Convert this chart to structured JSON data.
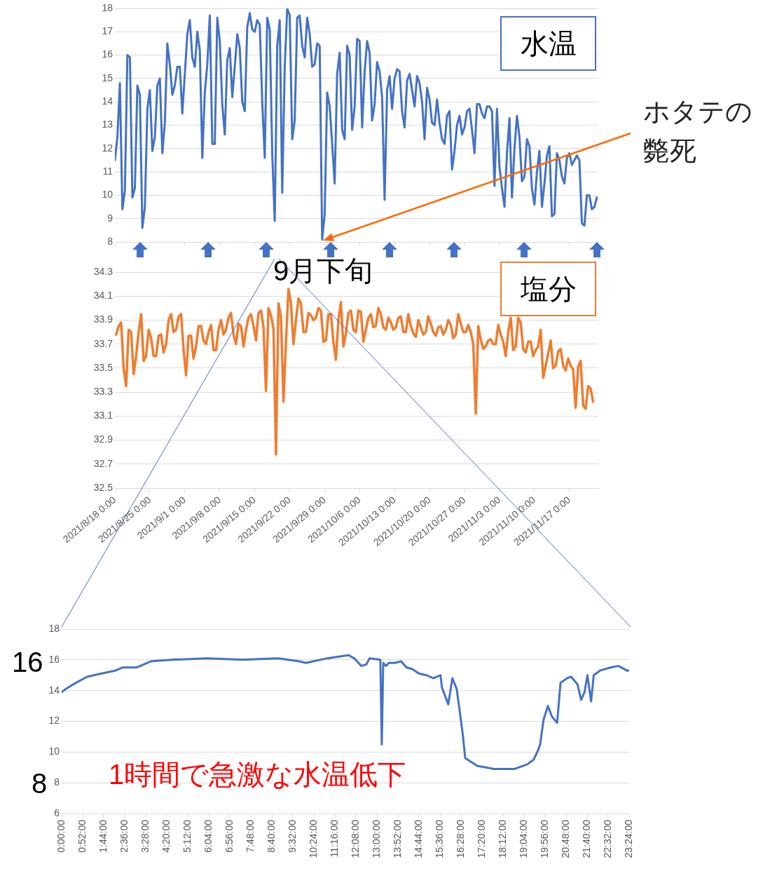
{
  "chart_data": [
    {
      "type": "line",
      "title": "水温",
      "xlim": [
        "2021-08-18T00:00",
        "2021-11-22T19:00"
      ],
      "xticks": [
        {
          "value": "2021-08-18T00:00",
          "label": null
        },
        {
          "value": "2021-08-25T00:00",
          "label": null
        },
        {
          "value": "2021-09-01T00:00",
          "label": null
        },
        {
          "value": "2021-09-08T00:00",
          "label": null
        },
        {
          "value": "2021-09-15T00:00",
          "label": null
        },
        {
          "value": "2021-09-22T00:00",
          "label": null
        },
        {
          "value": "2021-09-29T00:00",
          "label": null
        },
        {
          "value": "2021-10-06T00:00",
          "label": null
        },
        {
          "value": "2021-10-13T00:00",
          "label": null
        },
        {
          "value": "2021-10-20T00:00",
          "label": null
        },
        {
          "value": "2021-10-27T00:00",
          "label": null
        },
        {
          "value": "2021-11-03T00:00",
          "label": null
        },
        {
          "value": "2021-11-10T00:00",
          "label": null
        },
        {
          "value": "2021-11-17T00:00",
          "label": null
        }
      ],
      "ylim": [
        8,
        18
      ],
      "yticks": [
        8,
        9,
        10,
        11,
        12,
        13,
        14,
        15,
        16,
        17,
        18
      ],
      "grid": "y",
      "tick_labels": "y",
      "annotations": [
        "ホタテの斃死"
      ],
      "x": [
        "2021-08-18T00:00",
        "2021-08-18T12:00",
        "2021-08-19T00:00",
        "2021-08-19T12:00",
        "2021-08-20T00:00",
        "2021-08-20T12:00",
        "2021-08-21T00:00",
        "2021-08-21T12:00",
        "2021-08-22T00:00",
        "2021-08-22T12:00",
        "2021-08-23T00:00",
        "2021-08-23T12:00",
        "2021-08-24T00:00",
        "2021-08-24T12:00",
        "2021-08-25T00:00",
        "2021-08-25T12:00",
        "2021-08-26T00:00",
        "2021-08-26T12:00",
        "2021-08-27T00:00",
        "2021-08-27T12:00",
        "2021-08-28T00:00",
        "2021-08-28T12:00",
        "2021-08-29T00:00",
        "2021-08-29T12:00",
        "2021-08-30T00:00",
        "2021-08-30T12:00",
        "2021-08-31T00:00",
        "2021-08-31T12:00",
        "2021-09-01T00:00",
        "2021-09-01T12:00",
        "2021-09-02T00:00",
        "2021-09-02T12:00",
        "2021-09-03T00:00",
        "2021-09-03T12:00",
        "2021-09-04T00:00",
        "2021-09-04T12:00",
        "2021-09-05T00:00",
        "2021-09-05T12:00",
        "2021-09-06T00:00",
        "2021-09-06T12:00",
        "2021-09-07T00:00",
        "2021-09-07T12:00",
        "2021-09-08T00:00",
        "2021-09-08T12:00",
        "2021-09-09T00:00",
        "2021-09-09T12:00",
        "2021-09-10T00:00",
        "2021-09-10T12:00",
        "2021-09-11T00:00",
        "2021-09-11T12:00",
        "2021-09-12T00:00",
        "2021-09-12T12:00",
        "2021-09-13T00:00",
        "2021-09-13T12:00",
        "2021-09-14T00:00",
        "2021-09-14T12:00",
        "2021-09-15T00:00",
        "2021-09-15T12:00",
        "2021-09-16T00:00",
        "2021-09-16T12:00",
        "2021-09-17T00:00",
        "2021-09-17T12:00",
        "2021-09-18T00:00",
        "2021-09-18T12:00",
        "2021-09-19T00:00",
        "2021-09-19T12:00",
        "2021-09-20T00:00",
        "2021-09-20T12:00",
        "2021-09-21T00:00",
        "2021-09-21T12:00",
        "2021-09-22T00:00",
        "2021-09-22T12:00",
        "2021-09-23T00:00",
        "2021-09-23T12:00",
        "2021-09-24T00:00",
        "2021-09-24T12:00",
        "2021-09-25T00:00",
        "2021-09-25T12:00",
        "2021-09-26T00:00",
        "2021-09-26T12:00",
        "2021-09-27T00:00",
        "2021-09-27T12:00",
        "2021-09-28T00:00",
        "2021-09-28T12:00",
        "2021-09-29T00:00",
        "2021-09-29T12:00",
        "2021-09-30T00:00",
        "2021-09-30T12:00",
        "2021-10-01T00:00",
        "2021-10-01T12:00",
        "2021-10-02T00:00",
        "2021-10-02T12:00",
        "2021-10-03T00:00",
        "2021-10-03T12:00",
        "2021-10-04T00:00",
        "2021-10-04T12:00",
        "2021-10-05T00:00",
        "2021-10-05T12:00",
        "2021-10-06T00:00",
        "2021-10-06T12:00",
        "2021-10-07T00:00",
        "2021-10-07T12:00",
        "2021-10-08T00:00",
        "2021-10-08T12:00",
        "2021-10-09T00:00",
        "2021-10-09T12:00",
        "2021-10-10T00:00",
        "2021-10-10T12:00",
        "2021-10-11T00:00",
        "2021-10-11T12:00",
        "2021-10-12T00:00",
        "2021-10-12T12:00",
        "2021-10-13T00:00",
        "2021-10-13T12:00",
        "2021-10-14T00:00",
        "2021-10-14T12:00",
        "2021-10-15T00:00",
        "2021-10-15T12:00",
        "2021-10-16T00:00",
        "2021-10-16T12:00",
        "2021-10-17T00:00",
        "2021-10-17T12:00",
        "2021-10-18T00:00",
        "2021-10-18T12:00",
        "2021-10-19T00:00",
        "2021-10-19T12:00",
        "2021-10-20T00:00",
        "2021-10-20T12:00",
        "2021-10-21T00:00",
        "2021-10-21T12:00",
        "2021-10-22T00:00",
        "2021-10-22T12:00",
        "2021-10-23T00:00",
        "2021-10-23T12:00",
        "2021-10-24T00:00",
        "2021-10-24T12:00",
        "2021-10-25T00:00",
        "2021-10-25T12:00",
        "2021-10-26T00:00",
        "2021-10-26T12:00",
        "2021-10-27T00:00",
        "2021-10-27T12:00",
        "2021-10-28T00:00",
        "2021-10-28T12:00",
        "2021-10-29T00:00",
        "2021-10-29T12:00",
        "2021-10-30T00:00",
        "2021-10-30T12:00",
        "2021-10-31T00:00",
        "2021-10-31T12:00",
        "2021-11-01T00:00",
        "2021-11-01T12:00",
        "2021-11-02T00:00",
        "2021-11-02T12:00",
        "2021-11-03T00:00",
        "2021-11-03T12:00",
        "2021-11-04T00:00",
        "2021-11-04T12:00",
        "2021-11-05T00:00",
        "2021-11-05T12:00",
        "2021-11-06T00:00",
        "2021-11-06T12:00",
        "2021-11-07T00:00",
        "2021-11-07T12:00",
        "2021-11-08T00:00",
        "2021-11-08T12:00",
        "2021-11-09T00:00",
        "2021-11-09T12:00",
        "2021-11-10T00:00",
        "2021-11-10T12:00",
        "2021-11-11T00:00",
        "2021-11-11T12:00",
        "2021-11-12T00:00",
        "2021-11-12T12:00",
        "2021-11-13T00:00",
        "2021-11-13T12:00",
        "2021-11-14T00:00",
        "2021-11-14T12:00",
        "2021-11-15T00:00",
        "2021-11-15T12:00",
        "2021-11-16T00:00",
        "2021-11-16T12:00",
        "2021-11-17T00:00",
        "2021-11-17T12:00",
        "2021-11-18T00:00",
        "2021-11-18T12:00",
        "2021-11-19T00:00",
        "2021-11-19T12:00",
        "2021-11-20T00:00",
        "2021-11-20T12:00",
        "2021-11-21T00:00",
        "2021-11-21T12:00",
        "2021-11-22T00:00",
        "2021-11-22T12:00"
      ],
      "series": [
        {
          "color": "#4472c4",
          "values": [
            11.5,
            12.5,
            14.8,
            9.4,
            10.2,
            16.0,
            15.9,
            9.9,
            10.3,
            14.7,
            14.3,
            8.6,
            9.5,
            13.7,
            14.5,
            11.9,
            12.5,
            14.7,
            15.0,
            11.8,
            13.1,
            16.5,
            15.6,
            14.3,
            14.7,
            15.5,
            15.5,
            13.5,
            15.2,
            16.9,
            17.5,
            15.9,
            15.5,
            17.0,
            16.2,
            11.6,
            14.4,
            15.6,
            17.7,
            12.2,
            12.2,
            17.6,
            16.6,
            13.9,
            12.6,
            15.8,
            16.3,
            14.2,
            15.5,
            16.9,
            16.3,
            14.0,
            13.6,
            17.2,
            17.8,
            17.1,
            17.0,
            17.5,
            17.3,
            14.0,
            11.6,
            17.6,
            17.1,
            11.8,
            8.9,
            16.4,
            17.5,
            10.1,
            15.5,
            18.0,
            17.7,
            12.4,
            13.2,
            17.6,
            17.7,
            16.4,
            15.9,
            17.6,
            16.9,
            15.5,
            15.6,
            16.5,
            16.4,
            8.1,
            9.2,
            14.4,
            13.8,
            12.2,
            10.5,
            15.2,
            16.1,
            12.8,
            12.4,
            16.4,
            16.0,
            12.8,
            13.8,
            16.7,
            16.6,
            12.9,
            15.3,
            16.6,
            16.1,
            13.2,
            13.9,
            15.7,
            15.3,
            14.2,
            9.8,
            14.5,
            15.1,
            13.7,
            15.0,
            15.4,
            15.3,
            13.6,
            12.9,
            14.9,
            15.2,
            14.5,
            13.8,
            15.1,
            14.8,
            14.0,
            12.4,
            14.6,
            14.1,
            13.1,
            13.0,
            14.1,
            13.1,
            12.4,
            12.2,
            13.4,
            13.6,
            11.1,
            11.9,
            13.0,
            13.4,
            12.6,
            12.9,
            13.6,
            13.7,
            12.8,
            11.8,
            13.9,
            13.9,
            13.5,
            13.3,
            13.8,
            13.8,
            13.6,
            10.4,
            13.7,
            11.2,
            10.3,
            9.5,
            11.8,
            13.3,
            9.9,
            12.0,
            13.4,
            12.5,
            10.6,
            10.8,
            12.4,
            12.1,
            10.3,
            9.6,
            11.0,
            11.9,
            9.5,
            10.5,
            11.7,
            12.1,
            9.1,
            9.2,
            11.8,
            11.5,
            10.8,
            10.5,
            11.6,
            11.8,
            11.3,
            11.5,
            11.7,
            11.5,
            8.8,
            8.7,
            10.0,
            10.0,
            9.4,
            9.5,
            9.9
          ]
        }
      ]
    },
    {
      "type": "line",
      "title": "塩分",
      "xlim": [
        "2021-08-18T00:00",
        "2021-11-22T19:00"
      ],
      "xticks": [
        {
          "value": "2021-08-18T00:00",
          "label": "2021/8/18 0:00"
        },
        {
          "value": "2021-08-25T00:00",
          "label": "2021/8/25 0:00"
        },
        {
          "value": "2021-09-01T00:00",
          "label": "2021/9/1 0:00"
        },
        {
          "value": "2021-09-08T00:00",
          "label": "2021/9/8 0:00"
        },
        {
          "value": "2021-09-15T00:00",
          "label": "2021/9/15 0:00"
        },
        {
          "value": "2021-09-22T00:00",
          "label": "2021/9/22 0:00"
        },
        {
          "value": "2021-09-29T00:00",
          "label": "2021/9/29 0:00"
        },
        {
          "value": "2021-10-06T00:00",
          "label": "2021/10/6 0:00"
        },
        {
          "value": "2021-10-13T00:00",
          "label": "2021/10/13 0:00"
        },
        {
          "value": "2021-10-20T00:00",
          "label": "2021/10/20 0:00"
        },
        {
          "value": "2021-10-27T00:00",
          "label": "2021/10/27 0:00"
        },
        {
          "value": "2021-11-03T00:00",
          "label": "2021/11/3 0:00"
        },
        {
          "value": "2021-11-10T00:00",
          "label": "2021/11/10 0:00"
        },
        {
          "value": "2021-11-17T00:00",
          "label": "2021/11/17 0:00"
        }
      ],
      "ylim": [
        32.5,
        34.3
      ],
      "yticks": [
        32.5,
        32.7,
        32.9,
        33.1,
        33.3,
        33.5,
        33.7,
        33.9,
        34.1,
        34.3
      ],
      "grid": "y",
      "annotations": [
        "9月下旬"
      ],
      "x": [
        "2021-08-18T06:00",
        "2021-08-18T18:00",
        "2021-08-19T06:00",
        "2021-08-19T18:00",
        "2021-08-20T06:00",
        "2021-08-20T18:00",
        "2021-08-21T06:00",
        "2021-08-21T18:00",
        "2021-08-22T06:00",
        "2021-08-22T18:00",
        "2021-08-23T06:00",
        "2021-08-23T18:00",
        "2021-08-24T06:00",
        "2021-08-24T18:00",
        "2021-08-25T06:00",
        "2021-08-25T18:00",
        "2021-08-26T06:00",
        "2021-08-26T18:00",
        "2021-08-27T06:00",
        "2021-08-27T18:00",
        "2021-08-28T06:00",
        "2021-08-28T18:00",
        "2021-08-29T06:00",
        "2021-08-29T18:00",
        "2021-08-30T06:00",
        "2021-08-30T18:00",
        "2021-08-31T06:00",
        "2021-08-31T18:00",
        "2021-09-01T06:00",
        "2021-09-01T18:00",
        "2021-09-02T06:00",
        "2021-09-02T18:00",
        "2021-09-03T06:00",
        "2021-09-03T18:00",
        "2021-09-04T06:00",
        "2021-09-04T18:00",
        "2021-09-05T06:00",
        "2021-09-05T18:00",
        "2021-09-06T06:00",
        "2021-09-06T18:00",
        "2021-09-07T06:00",
        "2021-09-07T18:00",
        "2021-09-08T06:00",
        "2021-09-08T18:00",
        "2021-09-09T06:00",
        "2021-09-09T18:00",
        "2021-09-10T06:00",
        "2021-09-10T18:00",
        "2021-09-11T06:00",
        "2021-09-11T18:00",
        "2021-09-12T06:00",
        "2021-09-12T18:00",
        "2021-09-13T06:00",
        "2021-09-13T18:00",
        "2021-09-14T06:00",
        "2021-09-14T18:00",
        "2021-09-15T06:00",
        "2021-09-15T18:00",
        "2021-09-16T06:00",
        "2021-09-16T18:00",
        "2021-09-17T06:00",
        "2021-09-17T18:00",
        "2021-09-18T06:00",
        "2021-09-18T18:00",
        "2021-09-19T06:00",
        "2021-09-19T18:00",
        "2021-09-20T06:00",
        "2021-09-20T18:00",
        "2021-09-21T06:00",
        "2021-09-21T18:00",
        "2021-09-22T06:00",
        "2021-09-22T18:00",
        "2021-09-23T06:00",
        "2021-09-23T18:00",
        "2021-09-24T06:00",
        "2021-09-24T18:00",
        "2021-09-25T06:00",
        "2021-09-25T18:00",
        "2021-09-26T06:00",
        "2021-09-26T18:00",
        "2021-09-27T06:00",
        "2021-09-27T18:00",
        "2021-09-28T06:00",
        "2021-09-28T18:00",
        "2021-09-29T06:00",
        "2021-09-29T18:00",
        "2021-09-30T06:00",
        "2021-09-30T18:00",
        "2021-10-01T06:00",
        "2021-10-01T18:00",
        "2021-10-02T06:00",
        "2021-10-02T18:00",
        "2021-10-03T06:00",
        "2021-10-03T18:00",
        "2021-10-04T06:00",
        "2021-10-04T18:00",
        "2021-10-05T06:00",
        "2021-10-05T18:00",
        "2021-10-06T06:00",
        "2021-10-06T18:00",
        "2021-10-07T06:00",
        "2021-10-07T18:00",
        "2021-10-08T06:00",
        "2021-10-08T18:00",
        "2021-10-09T06:00",
        "2021-10-09T18:00",
        "2021-10-10T06:00",
        "2021-10-10T18:00",
        "2021-10-11T06:00",
        "2021-10-11T18:00",
        "2021-10-12T06:00",
        "2021-10-12T18:00",
        "2021-10-13T06:00",
        "2021-10-13T18:00",
        "2021-10-14T06:00",
        "2021-10-14T18:00",
        "2021-10-15T06:00",
        "2021-10-15T18:00",
        "2021-10-16T06:00",
        "2021-10-16T18:00",
        "2021-10-17T06:00",
        "2021-10-17T18:00",
        "2021-10-18T06:00",
        "2021-10-18T18:00",
        "2021-10-19T06:00",
        "2021-10-19T18:00",
        "2021-10-20T06:00",
        "2021-10-20T18:00",
        "2021-10-21T06:00",
        "2021-10-21T18:00",
        "2021-10-22T06:00",
        "2021-10-22T18:00",
        "2021-10-23T06:00",
        "2021-10-23T18:00",
        "2021-10-24T06:00",
        "2021-10-24T18:00",
        "2021-10-25T06:00",
        "2021-10-25T18:00",
        "2021-10-26T06:00",
        "2021-10-26T18:00",
        "2021-10-27T06:00",
        "2021-10-27T18:00",
        "2021-10-28T06:00",
        "2021-10-28T18:00",
        "2021-10-29T06:00",
        "2021-10-29T18:00",
        "2021-10-30T06:00",
        "2021-10-30T18:00",
        "2021-10-31T06:00",
        "2021-10-31T18:00",
        "2021-11-01T06:00",
        "2021-11-01T18:00",
        "2021-11-02T06:00",
        "2021-11-02T18:00",
        "2021-11-03T06:00",
        "2021-11-03T18:00",
        "2021-11-04T06:00",
        "2021-11-04T18:00",
        "2021-11-05T06:00",
        "2021-11-05T18:00",
        "2021-11-06T06:00",
        "2021-11-06T18:00",
        "2021-11-07T06:00",
        "2021-11-07T18:00",
        "2021-11-08T06:00",
        "2021-11-08T18:00",
        "2021-11-09T06:00",
        "2021-11-09T18:00",
        "2021-11-10T06:00",
        "2021-11-10T18:00",
        "2021-11-11T06:00",
        "2021-11-11T18:00",
        "2021-11-12T06:00",
        "2021-11-12T18:00",
        "2021-11-13T06:00",
        "2021-11-13T18:00",
        "2021-11-14T06:00",
        "2021-11-14T18:00",
        "2021-11-15T06:00",
        "2021-11-15T18:00",
        "2021-11-16T06:00",
        "2021-11-16T18:00",
        "2021-11-17T06:00",
        "2021-11-17T18:00",
        "2021-11-18T06:00",
        "2021-11-18T18:00",
        "2021-11-19T06:00",
        "2021-11-19T18:00",
        "2021-11-20T06:00",
        "2021-11-20T18:00",
        "2021-11-21T06:00",
        "2021-11-21T18:00"
      ],
      "series": [
        {
          "color": "#ed7d31",
          "values": [
            33.78,
            33.85,
            33.88,
            33.5,
            33.35,
            33.82,
            33.8,
            33.45,
            33.6,
            33.8,
            33.95,
            33.56,
            33.6,
            33.82,
            33.75,
            33.6,
            33.6,
            33.77,
            33.78,
            33.63,
            33.7,
            33.9,
            33.95,
            33.8,
            33.82,
            33.93,
            33.95,
            33.65,
            33.44,
            33.77,
            33.77,
            33.58,
            33.68,
            33.85,
            33.85,
            33.73,
            33.7,
            33.8,
            33.86,
            33.65,
            33.65,
            33.82,
            33.9,
            33.78,
            33.82,
            33.92,
            33.96,
            33.78,
            33.7,
            33.87,
            33.85,
            33.68,
            33.82,
            33.92,
            33.95,
            33.85,
            33.73,
            33.96,
            33.98,
            33.84,
            33.31,
            34.0,
            33.94,
            33.83,
            32.78,
            34.04,
            33.93,
            33.22,
            33.72,
            34.16,
            34.04,
            33.7,
            33.9,
            34.08,
            34.04,
            33.8,
            33.8,
            33.96,
            33.94,
            33.9,
            33.92,
            34.0,
            33.98,
            33.72,
            33.73,
            33.95,
            33.95,
            33.72,
            33.57,
            33.9,
            34.05,
            33.68,
            33.79,
            33.96,
            33.98,
            33.82,
            33.8,
            33.98,
            33.97,
            33.72,
            33.82,
            33.92,
            33.95,
            33.84,
            33.85,
            34.0,
            33.95,
            33.84,
            33.82,
            33.92,
            33.88,
            33.82,
            33.84,
            33.92,
            33.93,
            33.8,
            33.8,
            33.95,
            33.85,
            33.79,
            33.76,
            33.9,
            33.84,
            33.78,
            33.8,
            33.93,
            33.87,
            33.8,
            33.77,
            33.84,
            33.85,
            33.78,
            33.82,
            33.9,
            33.86,
            33.75,
            33.78,
            33.95,
            33.87,
            33.8,
            33.8,
            33.86,
            33.8,
            33.7,
            33.12,
            33.85,
            33.74,
            33.66,
            33.68,
            33.73,
            33.74,
            33.7,
            33.7,
            33.86,
            33.78,
            33.72,
            33.6,
            33.8,
            33.92,
            33.65,
            33.68,
            33.92,
            33.88,
            33.66,
            33.63,
            33.72,
            33.72,
            33.6,
            33.65,
            33.68,
            33.82,
            33.42,
            33.52,
            33.62,
            33.73,
            33.5,
            33.52,
            33.64,
            33.66,
            33.52,
            33.48,
            33.58,
            33.52,
            33.49,
            33.17,
            33.51,
            33.56,
            33.19,
            33.16,
            33.35,
            33.33,
            33.22
          ]
        }
      ]
    },
    {
      "type": "line",
      "xlim": [
        0,
        23.4
      ],
      "xticks": [
        {
          "value": 0,
          "label": "0:00:00"
        },
        {
          "value": 0.8667,
          "label": "0:52:00"
        },
        {
          "value": 1.7333,
          "label": "1:44:00"
        },
        {
          "value": 2.6,
          "label": "2:36:00"
        },
        {
          "value": 3.4667,
          "label": "3:28:00"
        },
        {
          "value": 4.3333,
          "label": "4:20:00"
        },
        {
          "value": 5.2,
          "label": "5:12:00"
        },
        {
          "value": 6.0667,
          "label": "6:04:00"
        },
        {
          "value": 6.9333,
          "label": "6:56:00"
        },
        {
          "value": 7.8,
          "label": "7:48:00"
        },
        {
          "value": 8.6667,
          "label": "8:40:00"
        },
        {
          "value": 9.5333,
          "label": "9:32:00"
        },
        {
          "value": 10.4,
          "label": "10:24:00"
        },
        {
          "value": 11.2667,
          "label": "11:16:00"
        },
        {
          "value": 12.1333,
          "label": "12:08:00"
        },
        {
          "value": 13,
          "label": "13:00:00"
        },
        {
          "value": 13.8667,
          "label": "13:52:00"
        },
        {
          "value": 14.7333,
          "label": "14:44:00"
        },
        {
          "value": 15.6,
          "label": "15:36:00"
        },
        {
          "value": 16.4667,
          "label": "16:28:00"
        },
        {
          "value": 17.3333,
          "label": "17:20:00"
        },
        {
          "value": 18.2,
          "label": "18:12:00"
        },
        {
          "value": 19.0667,
          "label": "19:04:00"
        },
        {
          "value": 19.9333,
          "label": "19:56:00"
        },
        {
          "value": 20.8,
          "label": "20:48:00"
        },
        {
          "value": 21.6667,
          "label": "21:40:00"
        },
        {
          "value": 22.5333,
          "label": "22:32:00"
        },
        {
          "value": 23.4,
          "label": "23:24:00"
        }
      ],
      "ylim": [
        6,
        18
      ],
      "yticks": [
        6,
        8,
        10,
        12,
        14,
        16,
        18
      ],
      "grid": "y",
      "annotations": [
        "1時間で急激な水温低下",
        "16",
        "8"
      ],
      "x": [
        0,
        0.17,
        0.47,
        1.05,
        1.63,
        2.21,
        2.51,
        3.09,
        3.67,
        4.55,
        6.0,
        7.46,
        8.92,
        9.79,
        10.08,
        10.37,
        10.96,
        11.83,
        12.06,
        12.36,
        12.56,
        12.7,
        13.14,
        13.2,
        13.26,
        13.37,
        13.49,
        13.72,
        14.0,
        14.22,
        14.45,
        14.74,
        15.04,
        15.33,
        15.62,
        15.68,
        15.94,
        16.11,
        16.29,
        16.46,
        16.55,
        16.64,
        17.13,
        17.83,
        18.68,
        19.2,
        19.46,
        19.64,
        19.73,
        19.87,
        20.05,
        20.22,
        20.43,
        20.57,
        20.84,
        21.01,
        21.27,
        21.42,
        21.56,
        21.68,
        21.83,
        21.94,
        22.2,
        22.64,
        22.96,
        23.31,
        23.4
      ],
      "series": [
        {
          "color": "#4472c4",
          "values": [
            13.9,
            14.1,
            14.4,
            14.9,
            15.1,
            15.3,
            15.5,
            15.5,
            15.9,
            16.0,
            16.1,
            16.0,
            16.1,
            15.9,
            15.8,
            15.9,
            16.1,
            16.3,
            16.1,
            15.6,
            15.7,
            16.1,
            16.0,
            10.5,
            15.8,
            15.6,
            15.8,
            15.8,
            15.9,
            15.5,
            15.4,
            15.1,
            15.0,
            14.8,
            15.0,
            14.2,
            13.1,
            14.8,
            14.1,
            12.1,
            11.0,
            9.6,
            9.1,
            8.9,
            8.9,
            9.2,
            9.5,
            10.1,
            10.5,
            12.1,
            13.0,
            12.3,
            11.9,
            14.5,
            14.8,
            14.9,
            14.4,
            13.4,
            13.9,
            15.0,
            13.3,
            15.0,
            15.3,
            15.5,
            15.6,
            15.3,
            15.3
          ]
        }
      ]
    }
  ]
}
